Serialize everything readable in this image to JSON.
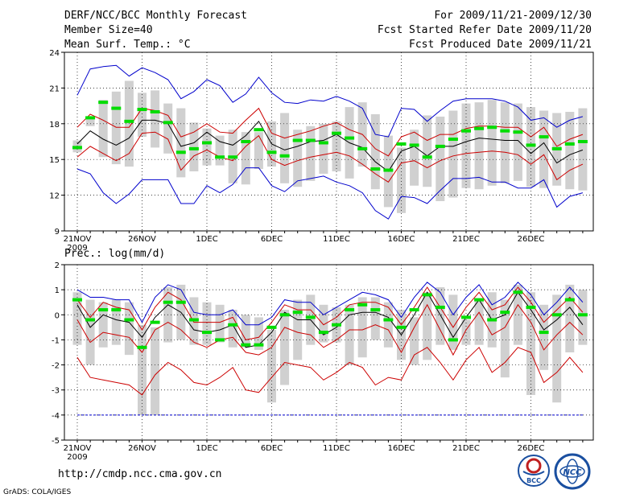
{
  "header": {
    "title": "DERF/NCC/BCC Monthly Forecast",
    "member_size": "Member Size=40",
    "variable": "Mean Surf. Temp.: °C",
    "period": "For 2009/11/21-2009/12/30",
    "started": "Fcst Started Refer Date 2009/11/20",
    "produced": "Fcst Produced Date 2009/11/21"
  },
  "footer": {
    "url": "http://cmdp.ncc.cma.gov.cn",
    "credit": "GrADS: COLA/IGES",
    "logo_left": "BCC",
    "logo_right": "NCC"
  },
  "colors": {
    "box": "#d0d0d0",
    "median": "#00dd00",
    "mean": "#000000",
    "inner": "#cc0000",
    "outer": "#0000cc"
  },
  "chart_data": [
    {
      "type": "box-line",
      "title": "Mean Surf. Temp.: °C",
      "ylim": [
        9,
        24
      ],
      "yticks": [
        9,
        12,
        15,
        18,
        21,
        24
      ],
      "x_tick_labels": [
        {
          "day": 1,
          "label": "21NOV",
          "sub": "2009"
        },
        {
          "day": 6,
          "label": "26NOV"
        },
        {
          "day": 11,
          "label": "1DEC"
        },
        {
          "day": 16,
          "label": "6DEC"
        },
        {
          "day": 21,
          "label": "11DEC"
        },
        {
          "day": 26,
          "label": "16DEC"
        },
        {
          "day": 31,
          "label": "21DEC"
        },
        {
          "day": 36,
          "label": "26DEC"
        }
      ],
      "box_low": [
        15.6,
        17.8,
        15.2,
        14.6,
        14.4,
        16.9,
        16.0,
        15.5,
        13.5,
        14.0,
        14.5,
        14.5,
        13.0,
        12.9,
        14.2,
        14.4,
        13.0,
        12.7,
        13.2,
        13.8,
        14.0,
        13.4,
        14.4,
        12.5,
        11.0,
        10.5,
        12.8,
        12.7,
        11.5,
        11.8,
        12.6,
        12.5,
        12.8,
        13.0,
        13.2,
        12.7,
        12.6,
        12.8,
        12.5,
        12.4
      ],
      "box_high": [
        16.6,
        18.5,
        20.0,
        20.7,
        21.6,
        20.6,
        20.8,
        19.7,
        19.3,
        18.1,
        17.6,
        17.0,
        17.5,
        17.3,
        17.3,
        18.2,
        18.9,
        17.5,
        17.8,
        18.0,
        18.2,
        19.4,
        19.8,
        18.8,
        17.0,
        16.0,
        17.5,
        18.7,
        18.6,
        19.1,
        19.7,
        19.8,
        20.0,
        19.8,
        19.7,
        19.4,
        19.1,
        18.9,
        19.0,
        19.3
      ],
      "median": [
        16.0,
        18.5,
        19.8,
        19.3,
        18.2,
        19.2,
        19.0,
        18.1,
        15.6,
        15.9,
        16.4,
        15.2,
        15.2,
        16.5,
        17.5,
        15.6,
        15.3,
        16.6,
        16.6,
        16.4,
        17.2,
        16.8,
        15.9,
        14.2,
        14.1,
        16.3,
        16.2,
        15.2,
        16.1,
        16.7,
        17.4,
        17.6,
        17.7,
        17.4,
        17.3,
        16.2,
        16.9,
        15.9,
        16.3,
        16.5
      ],
      "mean": [
        16.3,
        17.4,
        16.7,
        16.2,
        16.8,
        18.3,
        18.3,
        18.0,
        16.1,
        16.4,
        17.3,
        16.5,
        16.2,
        17.0,
        18.2,
        16.3,
        15.8,
        16.1,
        16.5,
        16.6,
        17.1,
        16.4,
        16.0,
        14.8,
        14.0,
        15.7,
        16.1,
        15.3,
        16.1,
        16.1,
        16.5,
        16.8,
        16.7,
        16.6,
        16.6,
        15.5,
        16.4,
        14.7,
        15.4,
        15.8
      ],
      "upper_inner": [
        17.7,
        18.8,
        18.3,
        17.7,
        17.7,
        19.3,
        19.1,
        18.7,
        16.9,
        17.3,
        18.0,
        17.3,
        17.2,
        18.3,
        19.3,
        17.2,
        16.8,
        17.1,
        17.4,
        17.8,
        18.1,
        17.5,
        17.1,
        15.9,
        15.3,
        16.9,
        17.3,
        16.6,
        17.1,
        17.1,
        17.6,
        17.8,
        17.8,
        17.7,
        17.7,
        16.9,
        17.7,
        16.1,
        16.7,
        17.1
      ],
      "lower_inner": [
        15.2,
        16.1,
        15.5,
        14.9,
        15.5,
        17.2,
        17.3,
        16.7,
        14.1,
        15.3,
        15.8,
        15.2,
        14.9,
        16.1,
        17.0,
        15.0,
        14.5,
        14.9,
        15.2,
        15.4,
        15.6,
        15.3,
        14.6,
        13.8,
        13.1,
        14.7,
        14.9,
        14.3,
        14.9,
        15.3,
        15.5,
        15.6,
        15.7,
        15.6,
        15.4,
        14.6,
        15.4,
        13.3,
        14.1,
        14.6
      ],
      "upper_outer": [
        20.4,
        22.6,
        22.8,
        22.9,
        22.0,
        22.7,
        22.3,
        21.7,
        20.1,
        20.7,
        21.7,
        21.2,
        19.8,
        20.5,
        21.9,
        20.6,
        19.8,
        19.7,
        20.0,
        19.9,
        20.3,
        19.9,
        19.3,
        17.1,
        16.9,
        19.3,
        19.2,
        18.2,
        19.1,
        19.9,
        20.1,
        20.1,
        20.1,
        19.9,
        19.4,
        18.3,
        18.5,
        17.7,
        18.3,
        18.6
      ],
      "lower_outer": [
        14.2,
        13.8,
        12.2,
        11.3,
        12.1,
        13.3,
        13.3,
        13.3,
        11.3,
        11.3,
        12.8,
        12.2,
        12.9,
        14.3,
        14.3,
        12.8,
        12.3,
        13.2,
        13.4,
        13.6,
        13.1,
        12.8,
        12.2,
        10.7,
        10.0,
        11.9,
        11.8,
        11.3,
        12.4,
        13.4,
        13.4,
        13.5,
        13.1,
        13.1,
        12.6,
        12.6,
        13.3,
        11.0,
        11.9,
        12.2
      ]
    },
    {
      "type": "box-line",
      "title": "Prec.: log(mm/d)",
      "ylim": [
        -5,
        2
      ],
      "yticks": [
        -5,
        -4,
        -3,
        -2,
        -1,
        0,
        1,
        2
      ],
      "x_tick_labels": [
        {
          "day": 1,
          "label": "21NOV",
          "sub": "2009"
        },
        {
          "day": 6,
          "label": "26NOV"
        },
        {
          "day": 11,
          "label": "1DEC"
        },
        {
          "day": 16,
          "label": "6DEC"
        },
        {
          "day": 21,
          "label": "11DEC"
        },
        {
          "day": 26,
          "label": "16DEC"
        },
        {
          "day": 31,
          "label": "21DEC"
        },
        {
          "day": 36,
          "label": "26DEC"
        }
      ],
      "floor": -4,
      "box_low": [
        -1.2,
        -2.0,
        -1.3,
        -1.2,
        -1.6,
        -4.0,
        -4.0,
        -1.1,
        -1.0,
        -1.2,
        -1.2,
        -1.1,
        -1.3,
        -1.3,
        -1.4,
        -3.5,
        -2.8,
        -1.8,
        -1.2,
        -1.1,
        -1.1,
        -2.0,
        -1.7,
        -1.0,
        -1.3,
        -1.8,
        -2.0,
        -1.8,
        -1.2,
        -1.4,
        -1.2,
        -1.2,
        -1.3,
        -2.5,
        -1.2,
        -3.2,
        -2.2,
        -3.5,
        -1.5,
        -1.2
      ],
      "box_high": [
        0.9,
        0.6,
        0.5,
        0.6,
        0.5,
        -0.4,
        -0.5,
        1.1,
        1.2,
        0.7,
        0.5,
        0.4,
        0.2,
        0.0,
        -0.1,
        -0.6,
        0.2,
        0.6,
        0.8,
        0.4,
        0.3,
        0.4,
        0.7,
        0.7,
        0.5,
        0.2,
        -0.1,
        0.9,
        1.1,
        0.8,
        -0.2,
        0.6,
        0.9,
        0.6,
        1.2,
        0.9,
        0.4,
        0.8,
        1.2,
        1.0
      ],
      "median": [
        0.6,
        -0.2,
        0.2,
        0.2,
        -0.2,
        -1.3,
        -0.3,
        0.5,
        0.5,
        -0.2,
        -0.7,
        -1.0,
        -0.4,
        -1.2,
        -1.2,
        -0.5,
        0.0,
        0.1,
        -0.1,
        -0.7,
        -0.4,
        0.2,
        0.4,
        0.2,
        -0.2,
        -0.5,
        0.2,
        0.8,
        0.3,
        -1.0,
        -0.1,
        0.6,
        -0.2,
        0.1,
        0.9,
        0.3,
        -0.7,
        0.0,
        0.6,
        0.0
      ],
      "mean": [
        0.4,
        -0.5,
        0.0,
        -0.2,
        -0.3,
        -0.9,
        -0.1,
        0.4,
        0.1,
        -0.6,
        -0.7,
        -0.6,
        -0.4,
        -1.3,
        -1.2,
        -0.7,
        0.1,
        -0.2,
        -0.2,
        -0.8,
        -0.5,
        0.0,
        0.1,
        0.1,
        -0.1,
        -0.8,
        0.0,
        0.9,
        0.0,
        -0.9,
        -0.1,
        0.6,
        -0.2,
        0.0,
        0.9,
        0.2,
        -0.6,
        -0.2,
        0.3,
        -0.4
      ],
      "upper_inner": [
        0.6,
        -0.1,
        0.5,
        0.3,
        0.2,
        -0.6,
        0.3,
        0.9,
        0.6,
        -0.3,
        -0.3,
        -0.3,
        -0.1,
        -1.0,
        -0.9,
        -0.3,
        0.4,
        0.2,
        0.2,
        -0.4,
        -0.1,
        0.4,
        0.5,
        0.5,
        0.3,
        -0.4,
        0.3,
        1.1,
        0.3,
        -0.5,
        0.3,
        0.9,
        0.2,
        0.4,
        1.1,
        0.5,
        -0.3,
        0.2,
        0.7,
        0.1
      ],
      "lower_inner": [
        -0.2,
        -1.1,
        -0.7,
        -0.8,
        -0.9,
        -1.5,
        -0.6,
        -0.3,
        -0.6,
        -1.1,
        -1.3,
        -1.0,
        -0.9,
        -1.5,
        -1.6,
        -1.3,
        -0.5,
        -0.7,
        -0.8,
        -1.3,
        -1.0,
        -0.6,
        -0.6,
        -0.4,
        -0.6,
        -1.5,
        -0.5,
        0.4,
        -0.6,
        -1.6,
        -0.6,
        0.1,
        -0.8,
        -0.5,
        0.4,
        -0.3,
        -1.4,
        -0.8,
        -0.3,
        -0.8
      ],
      "upper_outer": [
        1.0,
        0.7,
        0.7,
        0.6,
        0.6,
        -0.3,
        0.7,
        1.2,
        1.0,
        0.1,
        0.0,
        0.0,
        0.2,
        -0.4,
        -0.4,
        -0.1,
        0.6,
        0.5,
        0.5,
        0.0,
        0.3,
        0.6,
        0.9,
        0.8,
        0.6,
        -0.1,
        0.7,
        1.3,
        0.9,
        0.0,
        0.7,
        1.2,
        0.4,
        0.7,
        1.3,
        0.8,
        0.0,
        0.5,
        1.1,
        0.5
      ],
      "lower_outer": [
        -1.7,
        -2.5,
        -2.6,
        -2.7,
        -2.8,
        -3.2,
        -2.4,
        -1.9,
        -2.2,
        -2.7,
        -2.8,
        -2.5,
        -2.1,
        -3.0,
        -3.1,
        -2.5,
        -1.9,
        -2.0,
        -2.1,
        -2.6,
        -2.3,
        -1.9,
        -2.1,
        -2.8,
        -2.5,
        -2.6,
        -1.6,
        -1.3,
        -1.9,
        -2.6,
        -1.8,
        -1.3,
        -2.3,
        -1.9,
        -1.3,
        -1.5,
        -2.7,
        -2.3,
        -1.7,
        -2.3
      ]
    }
  ]
}
